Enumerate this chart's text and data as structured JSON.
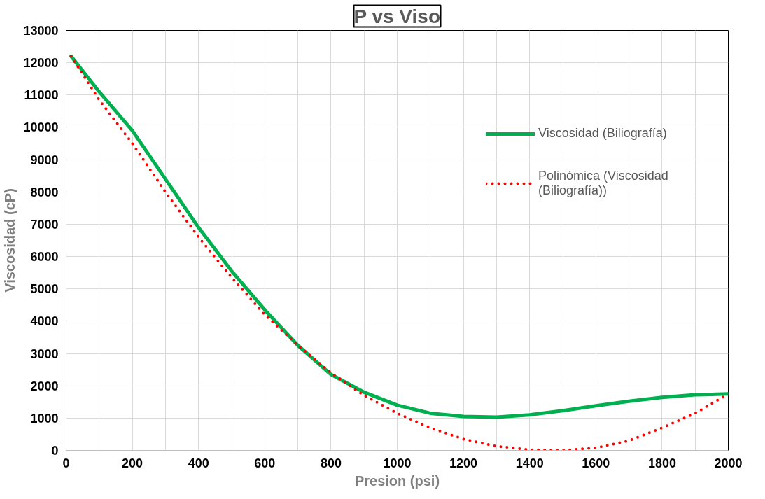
{
  "chart_data": {
    "type": "line",
    "title": "P vs Viso",
    "xlabel": "Presion (psi)",
    "ylabel": "Viscosidad (cP)",
    "x": [
      15,
      100,
      200,
      300,
      400,
      500,
      600,
      700,
      800,
      900,
      1000,
      1100,
      1200,
      1300,
      1400,
      1500,
      1600,
      1700,
      1800,
      1900,
      2000
    ],
    "series": [
      {
        "name": "Viscosidad (Biliografía)",
        "color": "#00b050",
        "line_style": "solid",
        "values": [
          12200,
          11100,
          9900,
          8400,
          6900,
          5550,
          4350,
          3250,
          2350,
          1800,
          1400,
          1150,
          1050,
          1030,
          1100,
          1230,
          1380,
          1520,
          1640,
          1720,
          1750
        ]
      },
      {
        "name": "Polinómica (Viscosidad (Biliografía))",
        "color": "#ff0000",
        "line_style": "dotted",
        "values": [
          12200,
          10850,
          9500,
          8000,
          6600,
          5350,
          4200,
          3250,
          2400,
          1700,
          1150,
          700,
          350,
          130,
          20,
          0,
          80,
          300,
          700,
          1150,
          1750
        ]
      }
    ],
    "xlim": [
      0,
      2000
    ],
    "xticks": [
      0,
      200,
      400,
      600,
      800,
      1000,
      1200,
      1400,
      1600,
      1800,
      2000
    ],
    "ylim": [
      0,
      13000
    ],
    "yticks": [
      0,
      1000,
      2000,
      3000,
      4000,
      5000,
      6000,
      7000,
      8000,
      9000,
      10000,
      11000,
      12000,
      13000
    ],
    "grid": true,
    "legend": "top right",
    "marker": "none"
  }
}
